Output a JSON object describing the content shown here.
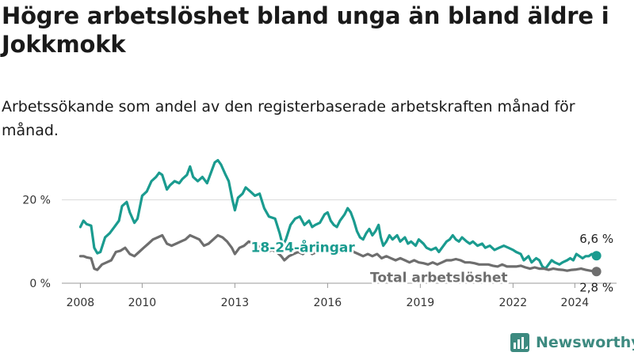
{
  "header": {
    "title": "Högre arbetslöshet bland unga än bland äldre i Jokkmokk",
    "subtitle": "Arbetssökande som andel av den registerbaserade arbetskraften månad för månad."
  },
  "brand": {
    "name": "Newsworthy"
  },
  "chart_data": {
    "type": "line",
    "x_unit": "year",
    "xlim": [
      2007.4,
      2025.35
    ],
    "ylim": [
      0,
      30
    ],
    "x_ticks": [
      {
        "value": 2008,
        "label": "2008"
      },
      {
        "value": 2010,
        "label": "2010"
      },
      {
        "value": 2013,
        "label": "2013"
      },
      {
        "value": 2016,
        "label": "2016"
      },
      {
        "value": 2019,
        "label": "2019"
      },
      {
        "value": 2022,
        "label": "2022"
      },
      {
        "value": 2024,
        "label": "2024"
      }
    ],
    "y_ticks": [
      {
        "value": 0,
        "label": "0 %"
      },
      {
        "value": 20,
        "label": "20 %"
      }
    ],
    "grid": "horizontal",
    "series": [
      {
        "name": "18-24-åringar",
        "color": "#1a9b8f",
        "end_label": "6,6 %",
        "points": [
          [
            2008.0,
            13.5
          ],
          [
            2008.1,
            15.0
          ],
          [
            2008.2,
            14.2
          ],
          [
            2008.35,
            13.8
          ],
          [
            2008.45,
            8.5
          ],
          [
            2008.55,
            7.2
          ],
          [
            2008.65,
            7.5
          ],
          [
            2008.8,
            11.0
          ],
          [
            2008.95,
            12.0
          ],
          [
            2009.1,
            13.5
          ],
          [
            2009.25,
            15.0
          ],
          [
            2009.35,
            18.5
          ],
          [
            2009.5,
            19.5
          ],
          [
            2009.6,
            17.0
          ],
          [
            2009.75,
            14.5
          ],
          [
            2009.85,
            15.5
          ],
          [
            2010.0,
            21.0
          ],
          [
            2010.15,
            22.0
          ],
          [
            2010.3,
            24.5
          ],
          [
            2010.45,
            25.5
          ],
          [
            2010.55,
            26.5
          ],
          [
            2010.65,
            26.0
          ],
          [
            2010.8,
            22.5
          ],
          [
            2010.9,
            23.5
          ],
          [
            2011.05,
            24.5
          ],
          [
            2011.2,
            24.0
          ],
          [
            2011.3,
            25.0
          ],
          [
            2011.45,
            26.0
          ],
          [
            2011.55,
            28.0
          ],
          [
            2011.65,
            25.5
          ],
          [
            2011.8,
            24.5
          ],
          [
            2011.95,
            25.5
          ],
          [
            2012.1,
            24.0
          ],
          [
            2012.25,
            27.0
          ],
          [
            2012.35,
            29.0
          ],
          [
            2012.45,
            29.5
          ],
          [
            2012.55,
            28.5
          ],
          [
            2012.7,
            26.0
          ],
          [
            2012.8,
            24.5
          ],
          [
            2012.92,
            20.0
          ],
          [
            2013.0,
            17.5
          ],
          [
            2013.1,
            20.5
          ],
          [
            2013.25,
            21.5
          ],
          [
            2013.35,
            23.0
          ],
          [
            2013.5,
            22.0
          ],
          [
            2013.65,
            21.0
          ],
          [
            2013.8,
            21.5
          ],
          [
            2013.95,
            18.0
          ],
          [
            2014.1,
            16.0
          ],
          [
            2014.3,
            15.5
          ],
          [
            2014.45,
            12.0
          ],
          [
            2014.55,
            9.0
          ],
          [
            2014.65,
            10.5
          ],
          [
            2014.8,
            14.0
          ],
          [
            2014.95,
            15.5
          ],
          [
            2015.1,
            16.0
          ],
          [
            2015.25,
            14.0
          ],
          [
            2015.4,
            15.0
          ],
          [
            2015.5,
            13.5
          ],
          [
            2015.6,
            14.0
          ],
          [
            2015.75,
            14.5
          ],
          [
            2015.9,
            16.5
          ],
          [
            2016.0,
            17.0
          ],
          [
            2016.1,
            15.0
          ],
          [
            2016.2,
            14.0
          ],
          [
            2016.3,
            13.5
          ],
          [
            2016.4,
            15.0
          ],
          [
            2016.55,
            16.5
          ],
          [
            2016.65,
            18.0
          ],
          [
            2016.75,
            17.0
          ],
          [
            2016.85,
            15.0
          ],
          [
            2016.95,
            12.5
          ],
          [
            2017.05,
            11.0
          ],
          [
            2017.15,
            10.5
          ],
          [
            2017.25,
            12.0
          ],
          [
            2017.35,
            13.0
          ],
          [
            2017.45,
            11.5
          ],
          [
            2017.55,
            12.5
          ],
          [
            2017.65,
            14.0
          ],
          [
            2017.72,
            11.0
          ],
          [
            2017.8,
            9.0
          ],
          [
            2017.9,
            10.0
          ],
          [
            2018.0,
            11.5
          ],
          [
            2018.1,
            10.5
          ],
          [
            2018.25,
            11.5
          ],
          [
            2018.35,
            10.0
          ],
          [
            2018.5,
            11.0
          ],
          [
            2018.6,
            9.5
          ],
          [
            2018.7,
            10.0
          ],
          [
            2018.85,
            9.0
          ],
          [
            2018.95,
            10.5
          ],
          [
            2019.1,
            9.5
          ],
          [
            2019.2,
            8.5
          ],
          [
            2019.35,
            8.0
          ],
          [
            2019.5,
            8.5
          ],
          [
            2019.6,
            7.5
          ],
          [
            2019.75,
            9.0
          ],
          [
            2019.85,
            10.0
          ],
          [
            2019.95,
            10.5
          ],
          [
            2020.05,
            11.5
          ],
          [
            2020.15,
            10.5
          ],
          [
            2020.25,
            10.0
          ],
          [
            2020.35,
            11.0
          ],
          [
            2020.5,
            10.0
          ],
          [
            2020.6,
            9.5
          ],
          [
            2020.7,
            10.0
          ],
          [
            2020.85,
            9.0
          ],
          [
            2021.0,
            9.5
          ],
          [
            2021.1,
            8.5
          ],
          [
            2021.25,
            9.0
          ],
          [
            2021.4,
            8.0
          ],
          [
            2021.55,
            8.5
          ],
          [
            2021.7,
            9.0
          ],
          [
            2021.85,
            8.5
          ],
          [
            2022.0,
            8.0
          ],
          [
            2022.1,
            7.5
          ],
          [
            2022.25,
            7.0
          ],
          [
            2022.35,
            5.5
          ],
          [
            2022.5,
            6.5
          ],
          [
            2022.6,
            5.0
          ],
          [
            2022.75,
            6.0
          ],
          [
            2022.85,
            5.5
          ],
          [
            2022.95,
            4.0
          ],
          [
            2023.05,
            3.5
          ],
          [
            2023.15,
            4.5
          ],
          [
            2023.25,
            5.5
          ],
          [
            2023.35,
            5.0
          ],
          [
            2023.5,
            4.5
          ],
          [
            2023.6,
            5.0
          ],
          [
            2023.75,
            5.5
          ],
          [
            2023.85,
            6.0
          ],
          [
            2023.95,
            5.5
          ],
          [
            2024.05,
            7.0
          ],
          [
            2024.15,
            6.5
          ],
          [
            2024.25,
            6.0
          ],
          [
            2024.35,
            6.5
          ],
          [
            2024.45,
            6.5
          ],
          [
            2024.55,
            7.0
          ],
          [
            2024.7,
            6.6
          ]
        ]
      },
      {
        "name": "Total arbetslöshet",
        "color": "#6e6e6e",
        "end_label": "2,8 %",
        "points": [
          [
            2008.0,
            6.5
          ],
          [
            2008.1,
            6.5
          ],
          [
            2008.2,
            6.2
          ],
          [
            2008.35,
            6.0
          ],
          [
            2008.45,
            3.5
          ],
          [
            2008.55,
            3.2
          ],
          [
            2008.7,
            4.5
          ],
          [
            2008.85,
            5.0
          ],
          [
            2009.0,
            5.5
          ],
          [
            2009.15,
            7.5
          ],
          [
            2009.3,
            7.8
          ],
          [
            2009.45,
            8.5
          ],
          [
            2009.6,
            7.0
          ],
          [
            2009.75,
            6.5
          ],
          [
            2009.9,
            7.5
          ],
          [
            2010.05,
            8.5
          ],
          [
            2010.2,
            9.5
          ],
          [
            2010.35,
            10.5
          ],
          [
            2010.5,
            11.0
          ],
          [
            2010.65,
            11.5
          ],
          [
            2010.8,
            9.5
          ],
          [
            2010.95,
            9.0
          ],
          [
            2011.1,
            9.5
          ],
          [
            2011.25,
            10.0
          ],
          [
            2011.4,
            10.5
          ],
          [
            2011.55,
            11.5
          ],
          [
            2011.7,
            11.0
          ],
          [
            2011.85,
            10.5
          ],
          [
            2012.0,
            9.0
          ],
          [
            2012.15,
            9.5
          ],
          [
            2012.3,
            10.5
          ],
          [
            2012.45,
            11.5
          ],
          [
            2012.6,
            11.0
          ],
          [
            2012.75,
            10.0
          ],
          [
            2012.9,
            8.5
          ],
          [
            2013.0,
            7.0
          ],
          [
            2013.15,
            8.5
          ],
          [
            2013.3,
            9.0
          ],
          [
            2013.45,
            10.0
          ],
          [
            2013.6,
            9.5
          ],
          [
            2013.75,
            9.0
          ],
          [
            2013.9,
            8.0
          ],
          [
            2014.05,
            7.5
          ],
          [
            2014.2,
            8.0
          ],
          [
            2014.35,
            7.5
          ],
          [
            2014.5,
            6.5
          ],
          [
            2014.6,
            5.5
          ],
          [
            2014.75,
            6.5
          ],
          [
            2014.9,
            7.0
          ],
          [
            2015.05,
            7.5
          ],
          [
            2015.2,
            7.0
          ],
          [
            2015.35,
            8.0
          ],
          [
            2015.5,
            7.0
          ],
          [
            2015.65,
            7.5
          ],
          [
            2015.8,
            8.0
          ],
          [
            2015.95,
            8.5
          ],
          [
            2016.1,
            7.5
          ],
          [
            2016.25,
            7.0
          ],
          [
            2016.4,
            7.5
          ],
          [
            2016.55,
            8.0
          ],
          [
            2016.7,
            8.5
          ],
          [
            2016.85,
            7.5
          ],
          [
            2017.0,
            7.0
          ],
          [
            2017.15,
            6.5
          ],
          [
            2017.3,
            7.0
          ],
          [
            2017.45,
            6.5
          ],
          [
            2017.6,
            7.0
          ],
          [
            2017.75,
            6.0
          ],
          [
            2017.9,
            6.5
          ],
          [
            2018.05,
            6.0
          ],
          [
            2018.2,
            5.5
          ],
          [
            2018.35,
            6.0
          ],
          [
            2018.5,
            5.5
          ],
          [
            2018.65,
            5.0
          ],
          [
            2018.8,
            5.5
          ],
          [
            2018.95,
            5.0
          ],
          [
            2019.1,
            4.8
          ],
          [
            2019.25,
            4.5
          ],
          [
            2019.4,
            5.0
          ],
          [
            2019.55,
            4.5
          ],
          [
            2019.7,
            5.0
          ],
          [
            2019.85,
            5.5
          ],
          [
            2020.0,
            5.5
          ],
          [
            2020.15,
            5.8
          ],
          [
            2020.3,
            5.5
          ],
          [
            2020.45,
            5.0
          ],
          [
            2020.6,
            5.0
          ],
          [
            2020.75,
            4.8
          ],
          [
            2020.9,
            4.5
          ],
          [
            2021.05,
            4.5
          ],
          [
            2021.2,
            4.5
          ],
          [
            2021.35,
            4.2
          ],
          [
            2021.5,
            4.0
          ],
          [
            2021.65,
            4.5
          ],
          [
            2021.8,
            4.0
          ],
          [
            2021.95,
            4.0
          ],
          [
            2022.1,
            4.0
          ],
          [
            2022.25,
            4.2
          ],
          [
            2022.4,
            3.8
          ],
          [
            2022.55,
            3.5
          ],
          [
            2022.7,
            3.8
          ],
          [
            2022.85,
            3.5
          ],
          [
            2023.0,
            3.5
          ],
          [
            2023.15,
            3.2
          ],
          [
            2023.3,
            3.5
          ],
          [
            2023.45,
            3.3
          ],
          [
            2023.6,
            3.2
          ],
          [
            2023.75,
            3.0
          ],
          [
            2023.9,
            3.2
          ],
          [
            2024.05,
            3.3
          ],
          [
            2024.2,
            3.5
          ],
          [
            2024.35,
            3.2
          ],
          [
            2024.5,
            3.0
          ],
          [
            2024.7,
            2.8
          ]
        ]
      }
    ]
  }
}
